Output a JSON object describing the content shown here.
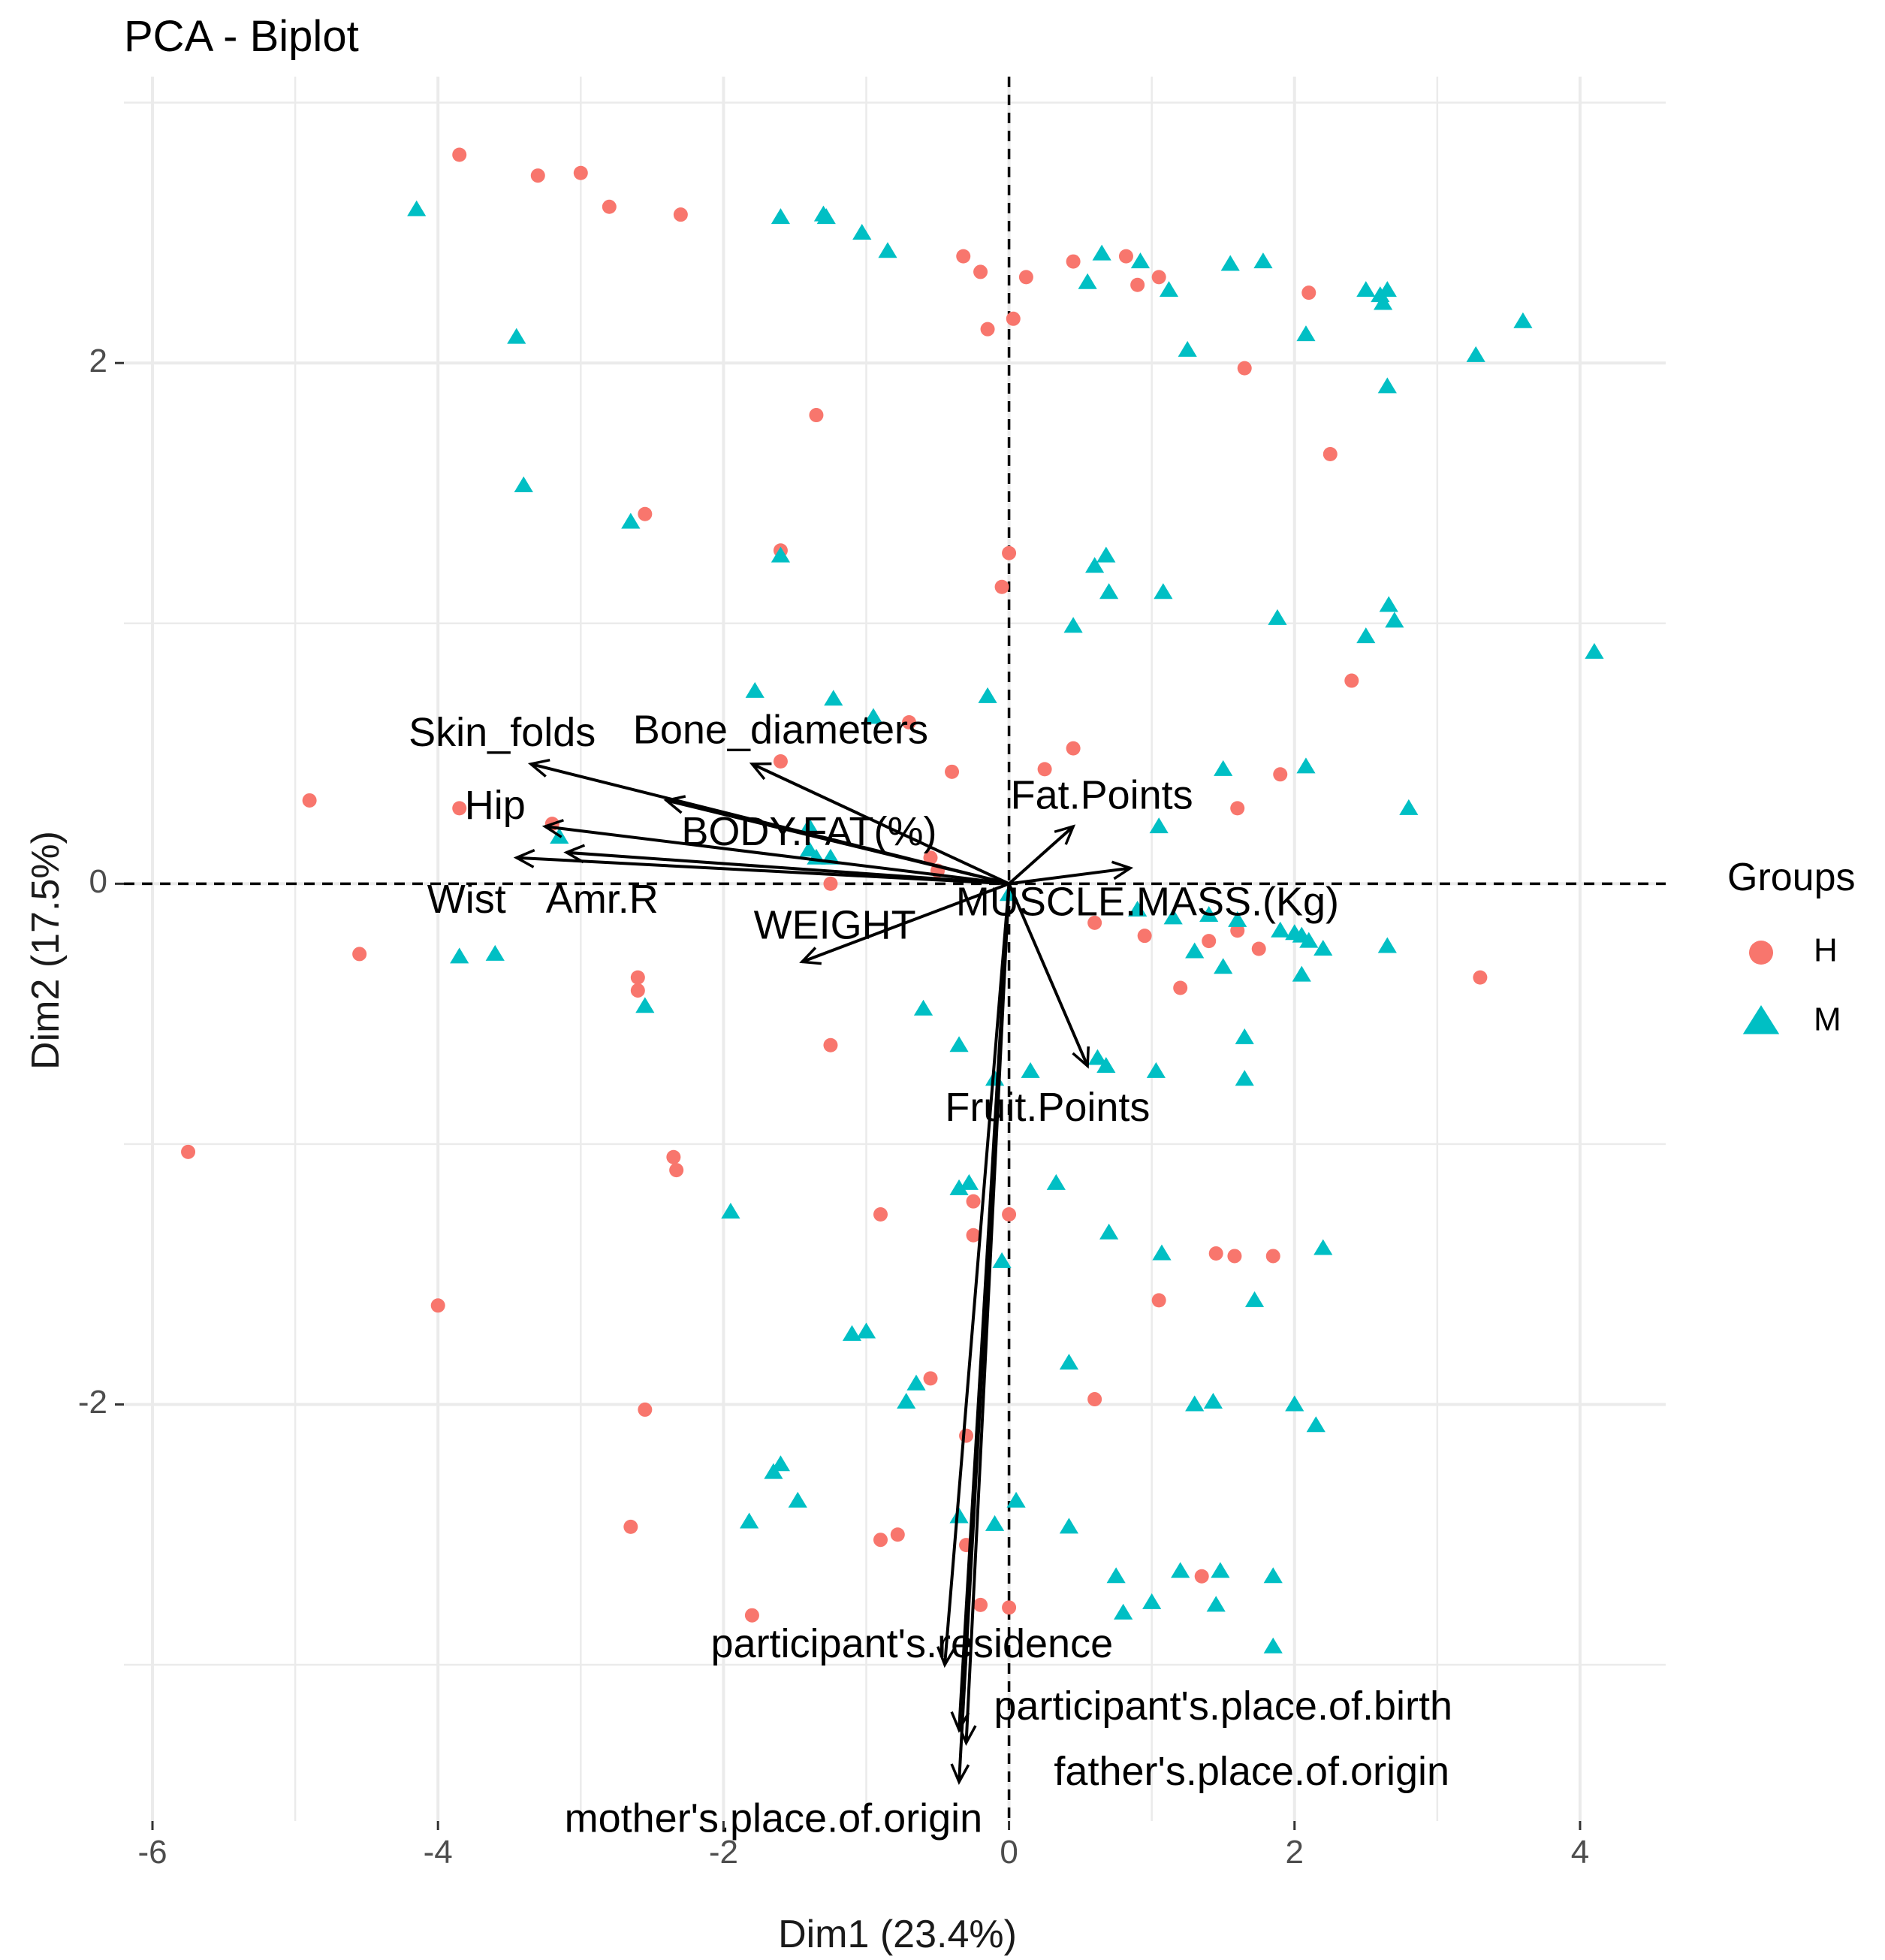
{
  "chart_data": {
    "type": "scatter",
    "subtype": "pca-biplot",
    "title": "PCA - Biplot",
    "xlabel": "Dim1 (23.4%)",
    "ylabel": "Dim2 (17.5%)",
    "xlim": [
      -6.2,
      4.6
    ],
    "ylim": [
      -3.6,
      3.1
    ],
    "x_ticks": [
      -6,
      -4,
      -2,
      0,
      2,
      4
    ],
    "y_ticks": [
      -2,
      0,
      2
    ],
    "grid": true,
    "legend": {
      "title": "Groups",
      "position": "right",
      "entries": [
        {
          "label": "H",
          "shape": "circle",
          "color": "#F8766D"
        },
        {
          "label": "M",
          "shape": "triangle",
          "color": "#00BFC4"
        }
      ]
    },
    "series": [
      {
        "name": "H",
        "shape": "circle",
        "color": "#F8766D",
        "points": [
          [
            -3.85,
            2.8
          ],
          [
            -3.3,
            2.72
          ],
          [
            -3.0,
            2.73
          ],
          [
            -2.8,
            2.6
          ],
          [
            -2.3,
            2.57
          ],
          [
            -0.32,
            2.41
          ],
          [
            -0.2,
            2.35
          ],
          [
            0.12,
            2.33
          ],
          [
            0.45,
            2.39
          ],
          [
            0.82,
            2.41
          ],
          [
            0.9,
            2.3
          ],
          [
            1.05,
            2.33
          ],
          [
            2.1,
            2.27
          ],
          [
            -0.15,
            2.13
          ],
          [
            0.03,
            2.17
          ],
          [
            1.65,
            1.98
          ],
          [
            -1.35,
            1.8
          ],
          [
            2.25,
            1.65
          ],
          [
            -2.55,
            1.42
          ],
          [
            -1.6,
            1.28
          ],
          [
            0.0,
            1.27
          ],
          [
            -0.05,
            1.14
          ],
          [
            2.4,
            0.78
          ],
          [
            -0.7,
            0.62
          ],
          [
            -1.6,
            0.47
          ],
          [
            -0.4,
            0.43
          ],
          [
            0.45,
            0.52
          ],
          [
            0.25,
            0.44
          ],
          [
            1.9,
            0.42
          ],
          [
            -4.9,
            0.32
          ],
          [
            -3.85,
            0.29
          ],
          [
            -3.2,
            0.23
          ],
          [
            1.6,
            0.29
          ],
          [
            -0.55,
            0.1
          ],
          [
            -0.5,
            0.05
          ],
          [
            -1.25,
            0.0
          ],
          [
            0.6,
            -0.15
          ],
          [
            0.95,
            -0.2
          ],
          [
            1.4,
            -0.22
          ],
          [
            1.6,
            -0.18
          ],
          [
            1.75,
            -0.25
          ],
          [
            -4.55,
            -0.27
          ],
          [
            -2.6,
            -0.36
          ],
          [
            -2.6,
            -0.41
          ],
          [
            1.2,
            -0.4
          ],
          [
            3.3,
            -0.36
          ],
          [
            -1.25,
            -0.62
          ],
          [
            -5.75,
            -1.03
          ],
          [
            -2.35,
            -1.05
          ],
          [
            -2.33,
            -1.1
          ],
          [
            -0.9,
            -1.27
          ],
          [
            -0.25,
            -1.22
          ],
          [
            0.0,
            -1.27
          ],
          [
            -0.25,
            -1.35
          ],
          [
            1.45,
            -1.42
          ],
          [
            1.58,
            -1.43
          ],
          [
            1.85,
            -1.43
          ],
          [
            -4.0,
            -1.62
          ],
          [
            1.05,
            -1.6
          ],
          [
            -0.55,
            -1.9
          ],
          [
            0.6,
            -1.98
          ],
          [
            -2.55,
            -2.02
          ],
          [
            -0.3,
            -2.12
          ],
          [
            -2.65,
            -2.47
          ],
          [
            -0.9,
            -2.52
          ],
          [
            -0.78,
            -2.5
          ],
          [
            -0.3,
            -2.54
          ],
          [
            1.35,
            -2.66
          ],
          [
            -0.2,
            -2.77
          ],
          [
            0.0,
            -2.78
          ],
          [
            -1.8,
            -2.81
          ]
        ]
      },
      {
        "name": "M",
        "shape": "triangle",
        "color": "#00BFC4",
        "points": [
          [
            -4.15,
            2.59
          ],
          [
            -1.6,
            2.56
          ],
          [
            -1.3,
            2.57
          ],
          [
            -1.28,
            2.56
          ],
          [
            -1.03,
            2.5
          ],
          [
            -0.85,
            2.43
          ],
          [
            0.65,
            2.42
          ],
          [
            0.92,
            2.39
          ],
          [
            1.55,
            2.38
          ],
          [
            1.78,
            2.39
          ],
          [
            0.55,
            2.31
          ],
          [
            1.12,
            2.28
          ],
          [
            2.5,
            2.28
          ],
          [
            2.6,
            2.26
          ],
          [
            2.65,
            2.28
          ],
          [
            2.62,
            2.23
          ],
          [
            3.6,
            2.16
          ],
          [
            -3.45,
            2.1
          ],
          [
            1.25,
            2.05
          ],
          [
            2.08,
            2.11
          ],
          [
            3.27,
            2.03
          ],
          [
            2.65,
            1.91
          ],
          [
            -3.4,
            1.53
          ],
          [
            -2.65,
            1.39
          ],
          [
            -1.6,
            1.26
          ],
          [
            0.68,
            1.26
          ],
          [
            0.6,
            1.22
          ],
          [
            0.7,
            1.12
          ],
          [
            1.08,
            1.12
          ],
          [
            0.45,
            0.99
          ],
          [
            1.88,
            1.02
          ],
          [
            2.66,
            1.07
          ],
          [
            2.7,
            1.01
          ],
          [
            2.5,
            0.95
          ],
          [
            4.1,
            0.89
          ],
          [
            -1.78,
            0.74
          ],
          [
            -1.23,
            0.71
          ],
          [
            -0.95,
            0.64
          ],
          [
            -0.15,
            0.72
          ],
          [
            1.5,
            0.44
          ],
          [
            2.08,
            0.45
          ],
          [
            2.8,
            0.29
          ],
          [
            1.05,
            0.22
          ],
          [
            -3.15,
            0.18
          ],
          [
            -1.4,
            0.22
          ],
          [
            -1.4,
            0.13
          ],
          [
            -1.25,
            0.1
          ],
          [
            -1.35,
            0.1
          ],
          [
            0.0,
            -0.04
          ],
          [
            0.9,
            -0.1
          ],
          [
            1.15,
            -0.13
          ],
          [
            1.4,
            -0.12
          ],
          [
            1.6,
            -0.14
          ],
          [
            1.9,
            -0.18
          ],
          [
            2.0,
            -0.19
          ],
          [
            2.05,
            -0.2
          ],
          [
            2.1,
            -0.22
          ],
          [
            2.2,
            -0.25
          ],
          [
            2.65,
            -0.24
          ],
          [
            1.3,
            -0.26
          ],
          [
            1.5,
            -0.32
          ],
          [
            2.05,
            -0.35
          ],
          [
            -3.85,
            -0.28
          ],
          [
            -3.6,
            -0.27
          ],
          [
            -2.55,
            -0.47
          ],
          [
            -0.6,
            -0.48
          ],
          [
            -0.35,
            -0.62
          ],
          [
            1.65,
            -0.59
          ],
          [
            0.62,
            -0.67
          ],
          [
            0.68,
            -0.7
          ],
          [
            0.15,
            -0.72
          ],
          [
            -0.1,
            -0.75
          ],
          [
            1.03,
            -0.72
          ],
          [
            1.65,
            -0.75
          ],
          [
            -0.35,
            -1.17
          ],
          [
            -0.28,
            -1.15
          ],
          [
            0.33,
            -1.15
          ],
          [
            -1.95,
            -1.26
          ],
          [
            0.7,
            -1.34
          ],
          [
            1.07,
            -1.42
          ],
          [
            2.2,
            -1.4
          ],
          [
            -0.05,
            -1.45
          ],
          [
            1.72,
            -1.6
          ],
          [
            -1.1,
            -1.73
          ],
          [
            -1.0,
            -1.72
          ],
          [
            0.42,
            -1.84
          ],
          [
            -0.65,
            -1.92
          ],
          [
            -0.72,
            -1.99
          ],
          [
            1.3,
            -2.0
          ],
          [
            1.43,
            -1.99
          ],
          [
            2.0,
            -2.0
          ],
          [
            2.15,
            -2.08
          ],
          [
            -1.6,
            -2.23
          ],
          [
            -1.65,
            -2.26
          ],
          [
            -1.48,
            -2.37
          ],
          [
            -0.35,
            -2.43
          ],
          [
            0.05,
            -2.37
          ],
          [
            -1.82,
            -2.45
          ],
          [
            -0.1,
            -2.46
          ],
          [
            0.42,
            -2.47
          ],
          [
            0.75,
            -2.66
          ],
          [
            1.2,
            -2.64
          ],
          [
            1.48,
            -2.64
          ],
          [
            1.85,
            -2.66
          ],
          [
            1.0,
            -2.76
          ],
          [
            0.8,
            -2.8
          ],
          [
            1.45,
            -2.77
          ],
          [
            1.85,
            -2.93
          ]
        ]
      }
    ],
    "variables": [
      {
        "label": "Skin_folds",
        "x": -3.35,
        "y": 0.46
      },
      {
        "label": "Bone_diameters",
        "x": -1.8,
        "y": 0.46
      },
      {
        "label": "Hip",
        "x": -3.25,
        "y": 0.22
      },
      {
        "label": "BODY.FAT(%)",
        "x": -2.4,
        "y": 0.32
      },
      {
        "label": "Wist",
        "x": -3.45,
        "y": 0.1
      },
      {
        "label": "Amr.R",
        "x": -3.1,
        "y": 0.12
      },
      {
        "label": "WEIGHT",
        "x": -1.45,
        "y": -0.3
      },
      {
        "label": "Fat.Points",
        "x": 0.45,
        "y": 0.22
      },
      {
        "label": "MUSCLE.MASS.(Kg)",
        "x": 0.85,
        "y": 0.06
      },
      {
        "label": "Fruit.Points",
        "x": 0.55,
        "y": -0.7
      },
      {
        "label": "participant's.residence",
        "x": -0.45,
        "y": -3.0
      },
      {
        "label": "participant's.place.of.birth",
        "x": -0.35,
        "y": -3.25
      },
      {
        "label": "father's.place.of.origin",
        "x": -0.3,
        "y": -3.3
      },
      {
        "label": "mother's.place.of.origin",
        "x": -0.35,
        "y": -3.45
      }
    ],
    "variable_labels": [
      {
        "text": "Skin_folds",
        "x": -3.55,
        "y": 0.57
      },
      {
        "text": "Bone_diameters",
        "x": -1.6,
        "y": 0.58
      },
      {
        "text": "Hip",
        "x": -3.6,
        "y": 0.29
      },
      {
        "text": "BODY.FAT(%)",
        "x": -1.4,
        "y": 0.19
      },
      {
        "text": "Wist",
        "x": -3.8,
        "y": -0.07
      },
      {
        "text": "Amr.R",
        "x": -2.85,
        "y": -0.07
      },
      {
        "text": "WEIGHT",
        "x": -1.22,
        "y": -0.17
      },
      {
        "text": "Fat.Points",
        "x": 0.65,
        "y": 0.33
      },
      {
        "text": "MUSCLE.MASS.(Kg)",
        "x": 0.97,
        "y": -0.08
      },
      {
        "text": "Fruit.Points",
        "x": 0.27,
        "y": -0.87
      },
      {
        "text": "participant's.residence",
        "x": -0.68,
        "y": -2.93
      },
      {
        "text": "participant's.place.of.birth",
        "x": 1.5,
        "y": -3.17
      },
      {
        "text": "father's.place.of.origin",
        "x": 1.7,
        "y": -3.42
      },
      {
        "text": "mother's.place.of.origin",
        "x": -1.65,
        "y": -3.6
      }
    ]
  }
}
